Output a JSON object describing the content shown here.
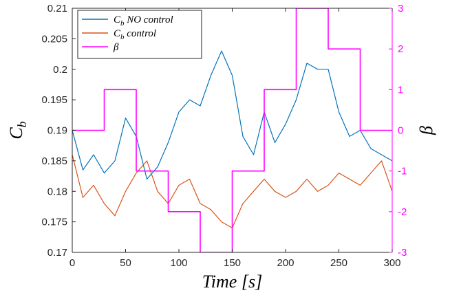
{
  "chart_data": {
    "type": "line",
    "xlabel": "Time [s]",
    "ylabel_left": "C_b",
    "ylabel_right": "β",
    "xlim": [
      0,
      300
    ],
    "ylim_left": [
      0.17,
      0.21
    ],
    "ylim_right": [
      -3,
      3
    ],
    "grid": false,
    "legend_position": "top-left",
    "x_ticks": [
      0,
      50,
      100,
      150,
      200,
      250,
      300
    ],
    "x_tick_labels": [
      "0",
      "50",
      "100",
      "150",
      "200",
      "250",
      "300"
    ],
    "y_left_ticks": [
      0.17,
      0.175,
      0.18,
      0.185,
      0.19,
      0.195,
      0.2,
      0.205,
      0.21
    ],
    "y_left_tick_labels": [
      "0.17",
      "0.175",
      "0.18",
      "0.185",
      "0.19",
      "0.195",
      "0.2",
      "0.205",
      "0.21"
    ],
    "y_right_ticks": [
      -3,
      -2,
      -1,
      0,
      1,
      2,
      3
    ],
    "y_right_tick_labels": [
      "-3",
      "-2",
      "-1",
      "0",
      "1",
      "2",
      "3"
    ],
    "series": [
      {
        "name": "C_b  NO control",
        "axis": "left",
        "color": "#0072BD",
        "x": [
          0,
          10,
          20,
          30,
          40,
          50,
          60,
          70,
          80,
          90,
          100,
          110,
          120,
          130,
          140,
          150,
          160,
          170,
          180,
          190,
          200,
          210,
          220,
          230,
          240,
          250,
          260,
          270,
          280,
          290,
          300
        ],
        "y": [
          0.19,
          0.1835,
          0.186,
          0.183,
          0.185,
          0.192,
          0.189,
          0.182,
          0.184,
          0.188,
          0.193,
          0.195,
          0.194,
          0.199,
          0.203,
          0.199,
          0.189,
          0.186,
          0.193,
          0.188,
          0.191,
          0.195,
          0.201,
          0.2,
          0.2,
          0.193,
          0.189,
          0.19,
          0.187,
          0.186,
          0.185
        ]
      },
      {
        "name": "C_b  control",
        "axis": "left",
        "color": "#D95319",
        "x": [
          0,
          10,
          20,
          30,
          40,
          50,
          60,
          70,
          80,
          90,
          100,
          110,
          120,
          130,
          140,
          150,
          160,
          170,
          180,
          190,
          200,
          210,
          220,
          230,
          240,
          250,
          260,
          270,
          280,
          290,
          300
        ],
        "y": [
          0.186,
          0.179,
          0.181,
          0.178,
          0.176,
          0.18,
          0.183,
          0.185,
          0.18,
          0.178,
          0.181,
          0.182,
          0.178,
          0.177,
          0.175,
          0.174,
          0.178,
          0.18,
          0.182,
          0.18,
          0.179,
          0.18,
          0.182,
          0.18,
          0.181,
          0.183,
          0.182,
          0.181,
          0.183,
          0.185,
          0.18
        ]
      },
      {
        "name": "β",
        "axis": "right",
        "color": "#FF00FF",
        "step": true,
        "x": [
          0,
          30,
          60,
          90,
          120,
          150,
          180,
          210,
          240,
          270,
          300
        ],
        "y": [
          0,
          1,
          -1,
          -2,
          -3,
          -1,
          1,
          3,
          2,
          0,
          0
        ]
      }
    ],
    "legend": [
      "C_b  NO control",
      "C_b  control",
      "β"
    ]
  }
}
